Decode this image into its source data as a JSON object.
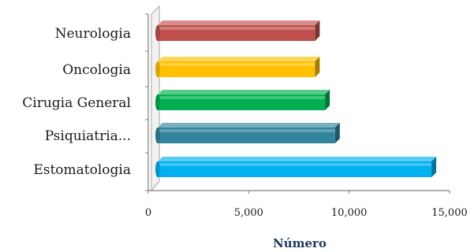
{
  "chart_data": {
    "type": "bar",
    "orientation": "horizontal",
    "style": "3d",
    "categories": [
      "Neurologia",
      "Oncologia",
      "Cirugia General",
      "Psiquiatria...",
      "Estomatologia"
    ],
    "values": [
      8300,
      8300,
      8800,
      9300,
      14100
    ],
    "colors": [
      "#c0504d",
      "#ffc000",
      "#00b050",
      "#31849b",
      "#00b0f0"
    ],
    "xlabel": "Número",
    "ylabel": "",
    "xlim": [
      0,
      15000
    ],
    "xticks": [
      0,
      5000,
      10000,
      15000
    ],
    "xtick_labels": [
      "0",
      "5,000",
      "10,000",
      "15,000"
    ],
    "grid": false,
    "legend": "none"
  }
}
